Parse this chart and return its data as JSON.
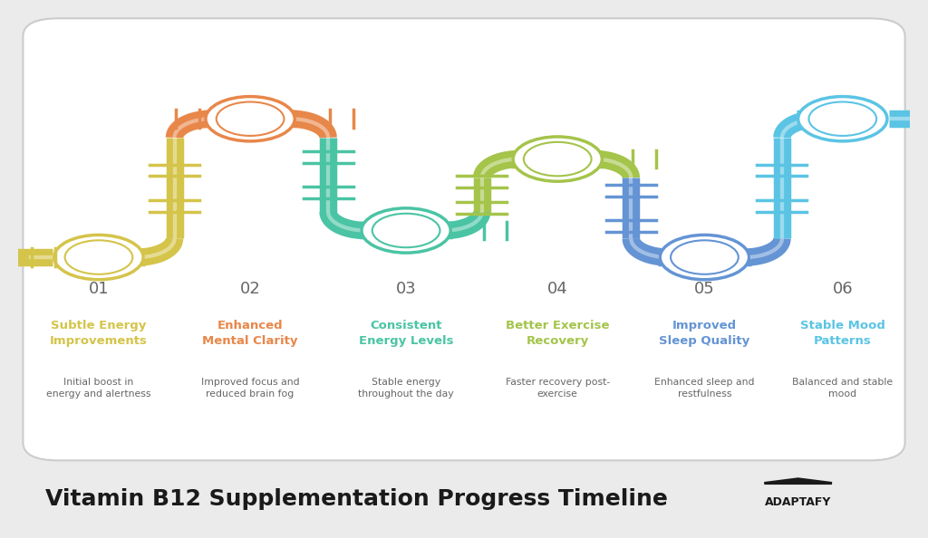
{
  "bg_color": "#ebebeb",
  "card_color": "#ffffff",
  "title": "Vitamin B12 Supplementation Progress Timeline",
  "title_fontsize": 18,
  "title_color": "#1a1a1a",
  "stages": [
    {
      "num": "01",
      "label": "Subtle Energy\nImprovements",
      "desc": "Initial boost in\nenergy and alertness",
      "color": "#d4c44a"
    },
    {
      "num": "02",
      "label": "Enhanced\nMental Clarity",
      "desc": "Improved focus and\nreduced brain fog",
      "color": "#e8874a"
    },
    {
      "num": "03",
      "label": "Consistent\nEnergy Levels",
      "desc": "Stable energy\nthroughout the day",
      "color": "#4ac4a4"
    },
    {
      "num": "04",
      "label": "Better Exercise\nRecovery",
      "desc": "Faster recovery post-\nexercise",
      "color": "#a4c44a"
    },
    {
      "num": "05",
      "label": "Improved\nSleep Quality",
      "desc": "Enhanced sleep and\nrestfulness",
      "color": "#6494d4"
    },
    {
      "num": "06",
      "label": "Stable Mood\nPatterns",
      "desc": "Balanced and stable\nmood",
      "color": "#5bc4e4"
    }
  ]
}
